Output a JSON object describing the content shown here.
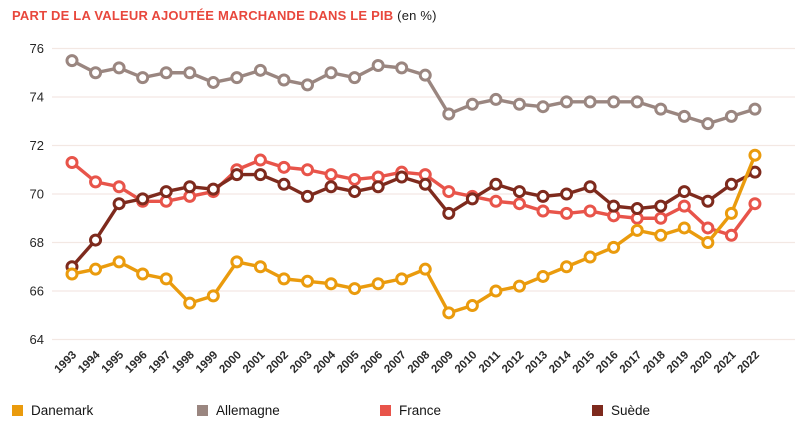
{
  "title": {
    "main": "PART DE LA VALEUR AJOUTÉE MARCHANDE DANS LE PIB",
    "suffix": " (en %)"
  },
  "colors": {
    "title_accent": "#e8473c",
    "gridline": "#f3e8e3",
    "axis_text": "#2b2b2b",
    "background": "#ffffff"
  },
  "chart_data": {
    "type": "line",
    "title": "PART DE LA VALEUR AJOUTÉE MARCHANDE DANS LE PIB (en %)",
    "x": [
      1993,
      1994,
      1995,
      1996,
      1997,
      1998,
      1999,
      2000,
      2001,
      2002,
      2003,
      2004,
      2005,
      2006,
      2007,
      2008,
      2009,
      2010,
      2011,
      2012,
      2013,
      2014,
      2015,
      2016,
      2017,
      2018,
      2019,
      2020,
      2021,
      2022
    ],
    "series": [
      {
        "name": "Danemark",
        "color": "#ea9b0d",
        "values": [
          66.7,
          66.9,
          67.2,
          66.7,
          66.5,
          65.5,
          65.8,
          67.2,
          67.0,
          66.5,
          66.4,
          66.3,
          66.1,
          66.3,
          66.5,
          66.9,
          65.1,
          65.4,
          66.0,
          66.2,
          66.6,
          67.0,
          67.4,
          67.8,
          68.5,
          68.3,
          68.6,
          68.0,
          69.2,
          71.6
        ]
      },
      {
        "name": "Allemagne",
        "color": "#9a8680",
        "values": [
          75.5,
          75.0,
          75.2,
          74.8,
          75.0,
          75.0,
          74.6,
          74.8,
          75.1,
          74.7,
          74.5,
          75.0,
          74.8,
          75.3,
          75.2,
          74.9,
          73.3,
          73.7,
          73.9,
          73.7,
          73.6,
          73.8,
          73.8,
          73.8,
          73.8,
          73.5,
          73.2,
          72.9,
          73.2,
          73.5
        ]
      },
      {
        "name": "France",
        "color": "#e8544a",
        "values": [
          71.3,
          70.5,
          70.3,
          69.7,
          69.7,
          69.9,
          70.1,
          71.0,
          71.4,
          71.1,
          71.0,
          70.8,
          70.6,
          70.7,
          70.9,
          70.8,
          70.1,
          69.9,
          69.7,
          69.6,
          69.3,
          69.2,
          69.3,
          69.1,
          69.0,
          69.0,
          69.5,
          68.6,
          68.3,
          69.6
        ]
      },
      {
        "name": "Suède",
        "color": "#7e2a1d",
        "values": [
          67.0,
          68.1,
          69.6,
          69.8,
          70.1,
          70.3,
          70.2,
          70.8,
          70.8,
          70.4,
          69.9,
          70.3,
          70.1,
          70.3,
          70.7,
          70.4,
          69.2,
          69.8,
          70.4,
          70.1,
          69.9,
          70.0,
          70.3,
          69.5,
          69.4,
          69.5,
          70.1,
          69.7,
          70.4,
          70.9
        ]
      }
    ],
    "draw_order": [
      "Allemagne",
      "France",
      "Suède",
      "Danemark"
    ],
    "ylim": [
      64,
      76
    ],
    "yticks": [
      64,
      66,
      68,
      70,
      72,
      74,
      76
    ],
    "grid": true,
    "marker": "open-circle",
    "legend_position": "bottom"
  }
}
